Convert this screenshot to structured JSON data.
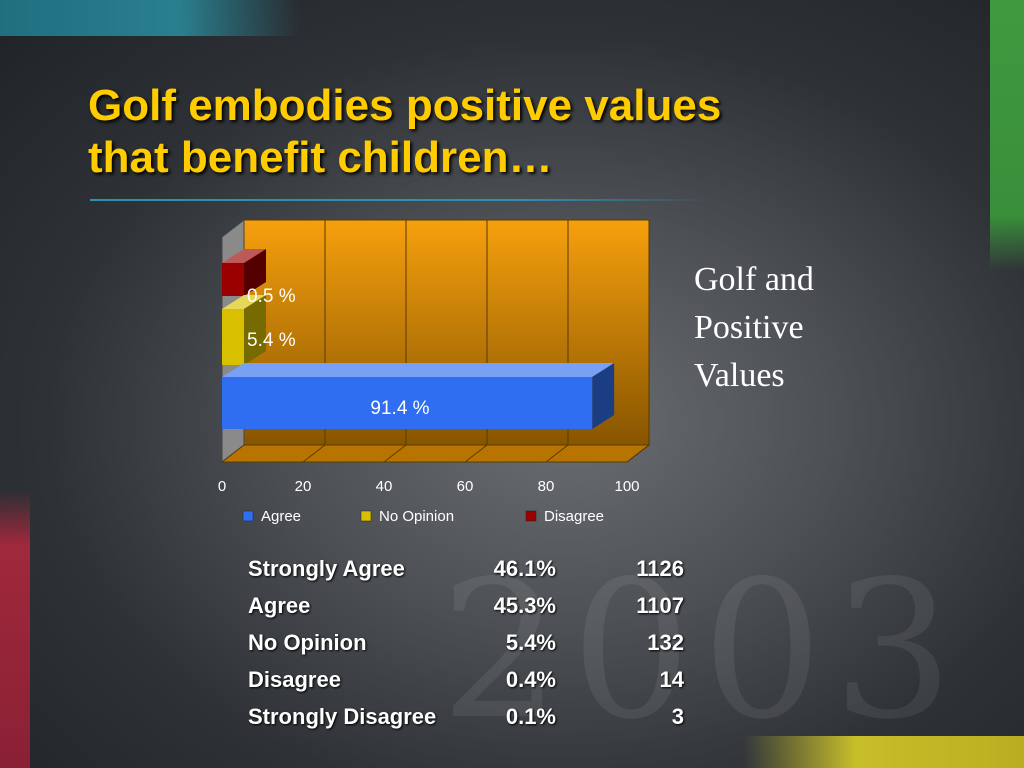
{
  "title_line1": "Golf embodies positive values",
  "title_line2": "that benefit children…",
  "side_label": [
    "Golf and",
    "Positive",
    "Values"
  ],
  "chart_data": {
    "type": "bar",
    "orientation": "horizontal",
    "title": "",
    "xlabel": "",
    "ylabel": "",
    "xlim": [
      0,
      100
    ],
    "x_ticks": [
      0,
      20,
      40,
      60,
      80,
      100
    ],
    "grid": true,
    "legend_position": "bottom",
    "series": [
      {
        "name": "Agree",
        "value": 91.4,
        "label": "91.4 %",
        "color": "#2f6ef0"
      },
      {
        "name": "No Opinion",
        "value": 5.4,
        "label": "5.4 %",
        "color": "#d8c000"
      },
      {
        "name": "Disagree",
        "value": 0.5,
        "label": "0.5 %",
        "color": "#9a0000"
      }
    ],
    "colors": {
      "plot_bg": "#f59b00",
      "label_text": "#ffffff",
      "axis_text": "#ffffff"
    }
  },
  "table": {
    "rows": [
      {
        "label": "Strongly Agree",
        "pct": "46.1%",
        "count": "1126"
      },
      {
        "label": "Agree",
        "pct": "45.3%",
        "count": "1107"
      },
      {
        "label": "No Opinion",
        "pct": "5.4%",
        "count": "132"
      },
      {
        "label": "Disagree",
        "pct": "0.4%",
        "count": "14"
      },
      {
        "label": "Strongly Disagree",
        "pct": "0.1%",
        "count": "3"
      }
    ]
  },
  "colors": {
    "title": "#ffcc00",
    "rule": "#2f8fb0"
  }
}
